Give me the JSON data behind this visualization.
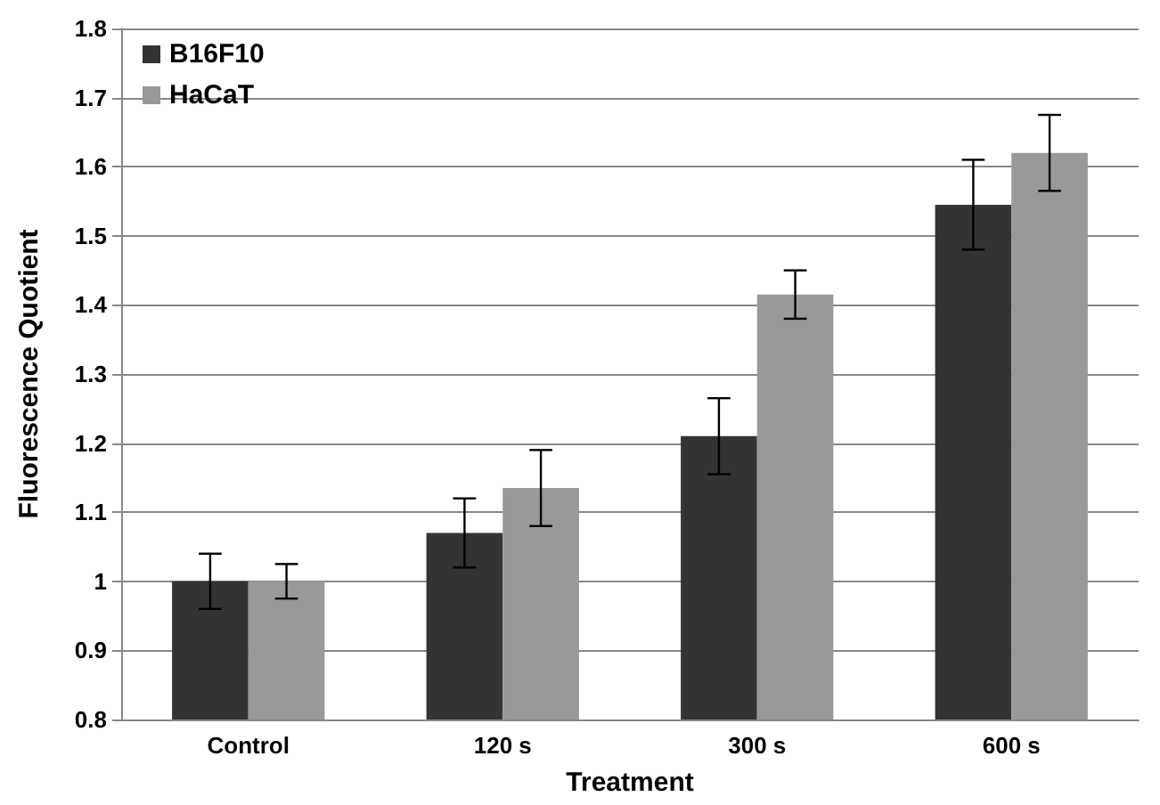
{
  "chart_data": {
    "type": "bar",
    "xlabel": "Treatment",
    "ylabel": "Fluorescence Quotient",
    "categories": [
      "Control",
      "120 s",
      "300 s",
      "600 s"
    ],
    "series": [
      {
        "name": "B16F10",
        "color": "#333333",
        "values": [
          1.0,
          1.07,
          1.21,
          1.545
        ],
        "errors": [
          0.04,
          0.05,
          0.055,
          0.065
        ]
      },
      {
        "name": "HaCaT",
        "color": "#999999",
        "values": [
          1.0,
          1.135,
          1.415,
          1.62
        ],
        "errors": [
          0.025,
          0.055,
          0.035,
          0.055
        ]
      }
    ],
    "ylim": [
      0.8,
      1.8
    ],
    "yticks": [
      0.8,
      0.9,
      1,
      1.1,
      1.2,
      1.3,
      1.4,
      1.5,
      1.6,
      1.7,
      1.8
    ],
    "grid": "y",
    "legend": "top left"
  }
}
